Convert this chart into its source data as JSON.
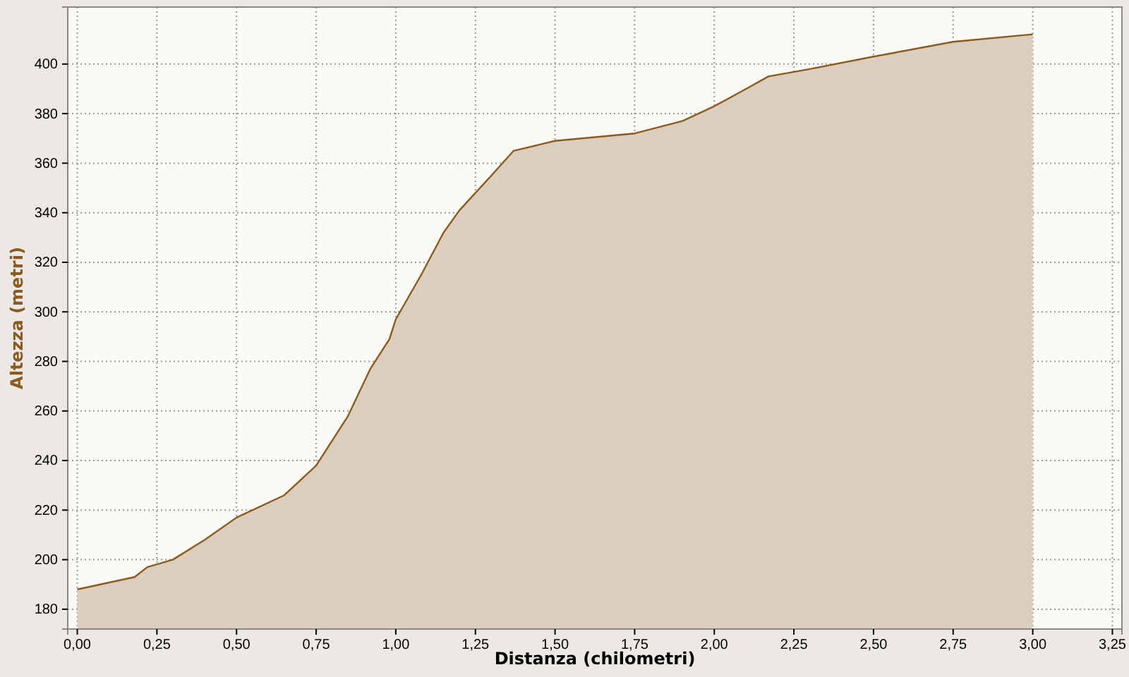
{
  "chart_data": {
    "type": "area",
    "xlabel": "Distanza (chilometri)",
    "ylabel": "Altezza (metri)",
    "x": [
      0,
      0.18,
      0.22,
      0.3,
      0.4,
      0.5,
      0.65,
      0.75,
      0.85,
      0.92,
      0.98,
      1.0,
      1.08,
      1.15,
      1.2,
      1.3,
      1.37,
      1.5,
      1.75,
      1.9,
      2.0,
      2.1,
      2.17,
      2.3,
      2.5,
      2.75,
      3.0
    ],
    "series": [
      {
        "color": "#8b5a1e",
        "values": [
          188,
          193,
          197,
          200,
          208,
          217,
          226,
          238,
          258,
          277,
          289,
          297,
          315,
          332,
          341,
          355,
          365,
          369,
          372,
          377,
          383,
          390,
          395,
          398,
          403,
          409,
          412
        ]
      }
    ],
    "xlim": [
      -0.03,
      3.28
    ],
    "ylim": [
      172,
      423
    ],
    "xticks": [
      {
        "value": 0,
        "label": "0,00"
      },
      {
        "value": 0.25,
        "label": "0,25"
      },
      {
        "value": 0.5,
        "label": "0,50"
      },
      {
        "value": 0.75,
        "label": "0,75"
      },
      {
        "value": 1,
        "label": "1,00"
      },
      {
        "value": 1.25,
        "label": "1,25"
      },
      {
        "value": 1.5,
        "label": "1,50"
      },
      {
        "value": 1.75,
        "label": "1,75"
      },
      {
        "value": 2,
        "label": "2,00"
      },
      {
        "value": 2.25,
        "label": "2,25"
      },
      {
        "value": 2.5,
        "label": "2,50"
      },
      {
        "value": 2.75,
        "label": "2,75"
      },
      {
        "value": 3,
        "label": "3,00"
      },
      {
        "value": 3.25,
        "label": "3,25"
      }
    ],
    "yticks": [
      180,
      200,
      220,
      240,
      260,
      280,
      300,
      320,
      340,
      360,
      380,
      400
    ],
    "grid": true
  }
}
